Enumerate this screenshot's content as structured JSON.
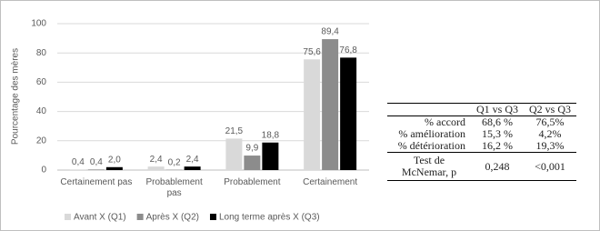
{
  "chart_data": {
    "type": "bar",
    "y_label": "Pourcentage des mères",
    "categories": [
      "Certainement pas",
      "Probablement pas",
      "Probablement",
      "Certainement"
    ],
    "series": [
      {
        "name": "Avant X (Q1)",
        "color": "#d9d9d9",
        "values": [
          0.4,
          2.4,
          21.5,
          75.6
        ],
        "value_labels": [
          "0,4",
          "2,4",
          "21,5",
          "75,6"
        ]
      },
      {
        "name": "Après X (Q2)",
        "color": "#8c8c8c",
        "values": [
          0.4,
          0.2,
          9.9,
          89.4
        ],
        "value_labels": [
          "0,4",
          "0,2",
          "9,9",
          "89,4"
        ]
      },
      {
        "name": "Long terme après X (Q3)",
        "color": "#000000",
        "values": [
          2.0,
          2.4,
          18.8,
          76.8
        ],
        "value_labels": [
          "2,0",
          "2,4",
          "18,8",
          "76,8"
        ]
      }
    ],
    "ylim": [
      0,
      100
    ],
    "yticks": [
      0,
      20,
      40,
      60,
      80,
      100
    ],
    "grid": true
  },
  "table": {
    "header": [
      "Q1 vs Q3",
      "Q2 vs Q3"
    ],
    "rows": [
      [
        "% accord",
        "68,6 %",
        "76,5%"
      ],
      [
        "% amélioration",
        "15,3 %",
        "4,2%"
      ],
      [
        "% détérioration",
        "16,2 %",
        "19,3%"
      ],
      [
        "Test de McNemar, p",
        "0,248",
        "<0,001"
      ]
    ]
  }
}
